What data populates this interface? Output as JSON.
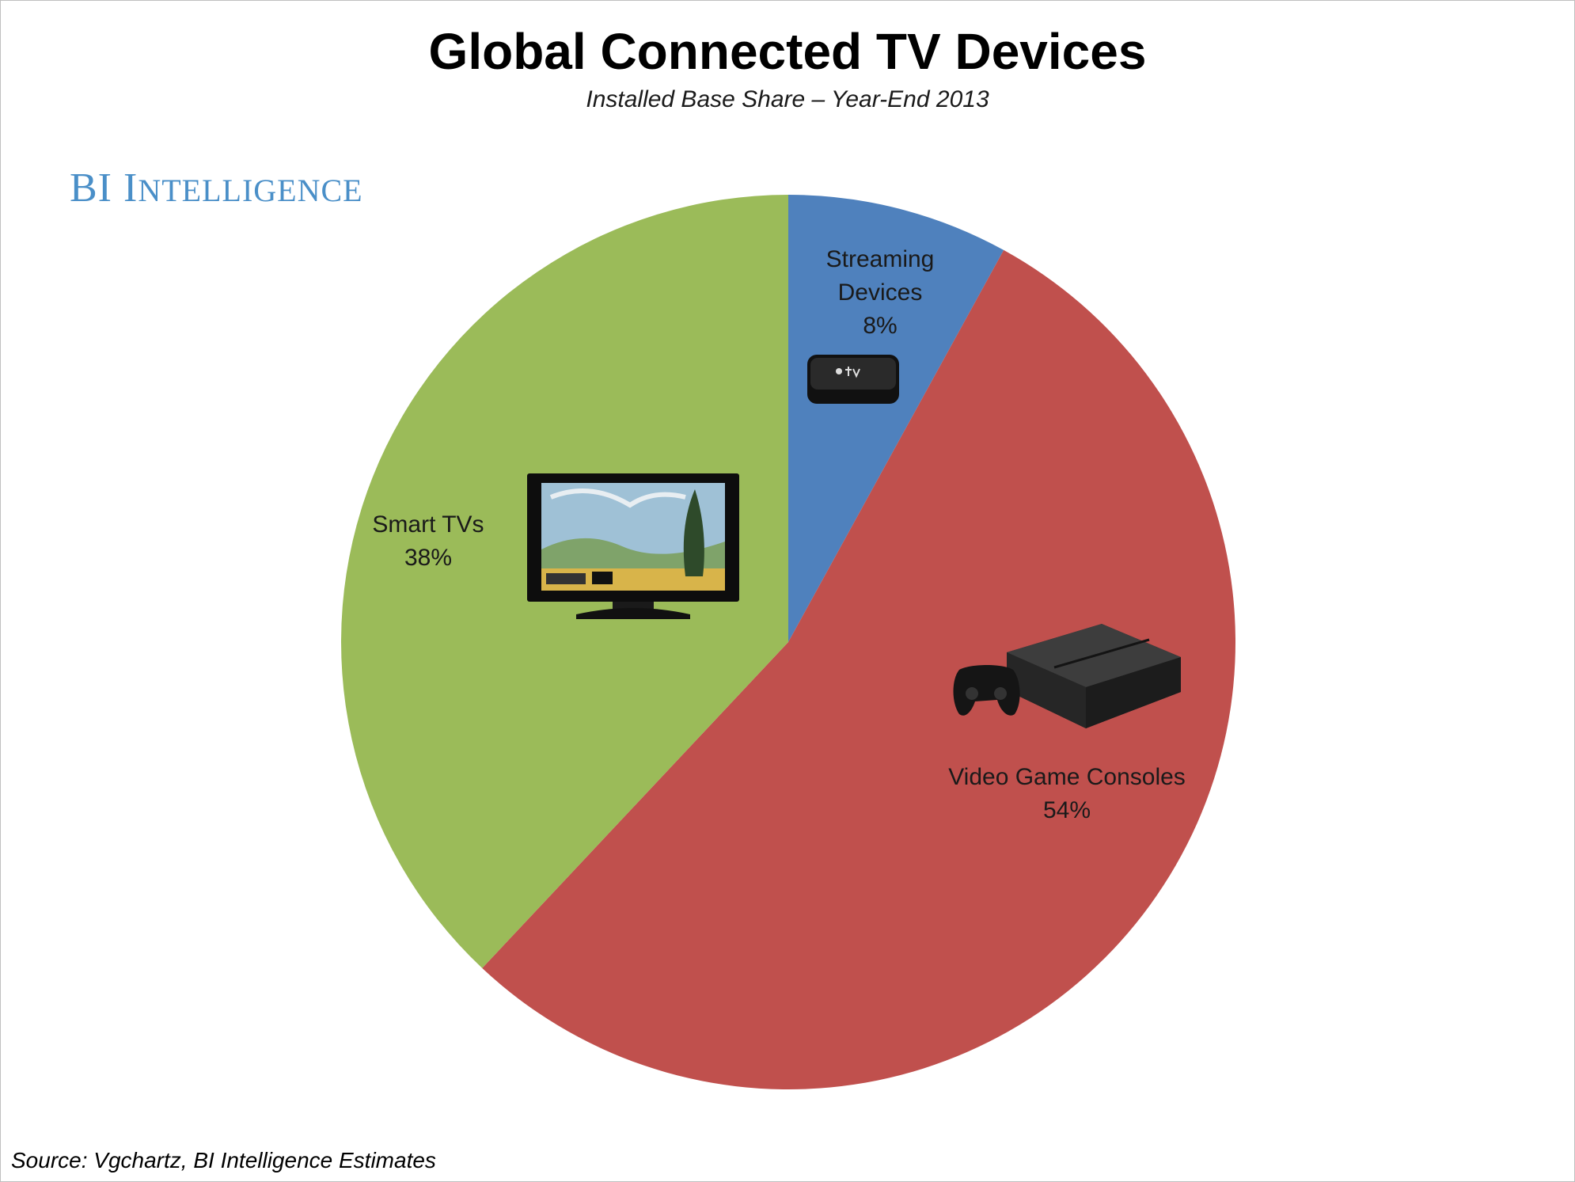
{
  "title": "Global Connected TV Devices",
  "subtitle": "Installed Base Share – Year-End 2013",
  "brand": "BI Intelligence",
  "source": "Source: Vgchartz, BI Intelligence Estimates",
  "chart_data": {
    "type": "pie",
    "title": "Global Connected TV Devices",
    "subtitle": "Installed Base Share – Year-End 2013",
    "slices": [
      {
        "name": "Streaming Devices",
        "label_lines": [
          "Streaming",
          "Devices"
        ],
        "value": 8,
        "value_label": "8%",
        "color": "#4f81bd",
        "icon": "apple-tv-icon"
      },
      {
        "name": "Video Game Consoles",
        "label_lines": [
          "Video Game Consoles"
        ],
        "value": 54,
        "value_label": "54%",
        "color": "#c0504d",
        "icon": "game-console-icon"
      },
      {
        "name": "Smart TVs",
        "label_lines": [
          "Smart TVs"
        ],
        "value": 38,
        "value_label": "38%",
        "color": "#9bbb59",
        "icon": "smart-tv-icon"
      }
    ],
    "start_angle": "12 o'clock",
    "direction": "clockwise",
    "legend": "none"
  },
  "colors": {
    "streaming": "#4f81bd",
    "consoles": "#c0504d",
    "smart_tvs": "#9bbb59",
    "brand": "#4a8fc8"
  }
}
